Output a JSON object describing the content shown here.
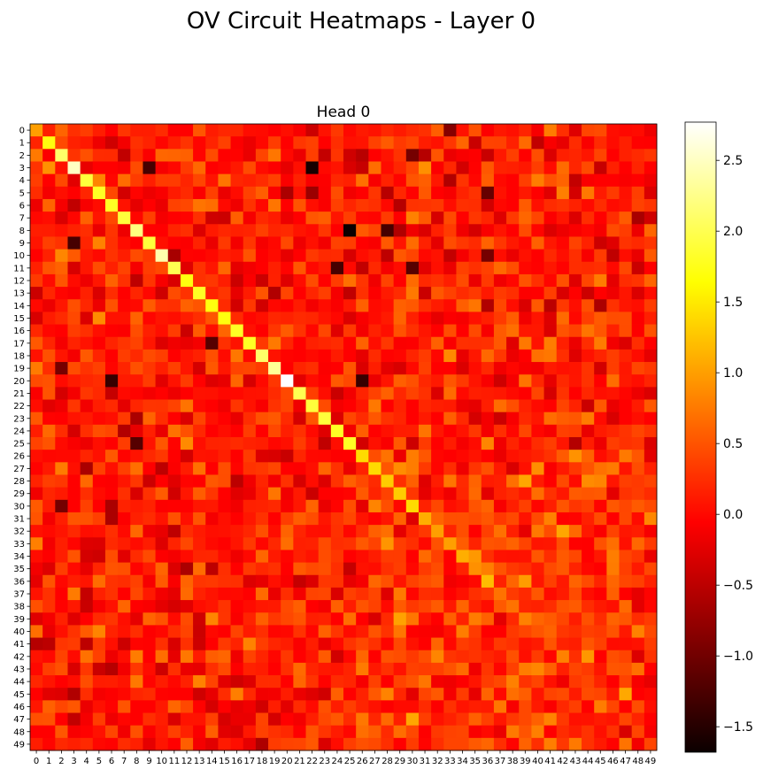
{
  "figure": {
    "suptitle": "OV Circuit Heatmaps - Layer 0"
  },
  "chart_data": {
    "type": "heatmap",
    "title": "Head 0",
    "xlabel": "",
    "ylabel": "",
    "colormap": "hot",
    "rows": 50,
    "cols": 50,
    "x_tick_labels": [
      "0",
      "1",
      "2",
      "3",
      "4",
      "5",
      "6",
      "7",
      "8",
      "9",
      "10",
      "11",
      "12",
      "13",
      "14",
      "15",
      "16",
      "17",
      "18",
      "19",
      "20",
      "21",
      "22",
      "23",
      "24",
      "25",
      "26",
      "27",
      "28",
      "29",
      "30",
      "31",
      "32",
      "33",
      "34",
      "35",
      "36",
      "37",
      "38",
      "39",
      "40",
      "41",
      "42",
      "43",
      "44",
      "45",
      "46",
      "47",
      "48",
      "49"
    ],
    "y_tick_labels": [
      "0",
      "1",
      "2",
      "3",
      "4",
      "5",
      "6",
      "7",
      "8",
      "9",
      "10",
      "11",
      "12",
      "13",
      "14",
      "15",
      "16",
      "17",
      "18",
      "19",
      "20",
      "21",
      "22",
      "23",
      "24",
      "25",
      "26",
      "27",
      "28",
      "29",
      "30",
      "31",
      "32",
      "33",
      "34",
      "35",
      "36",
      "37",
      "38",
      "39",
      "40",
      "41",
      "42",
      "43",
      "44",
      "45",
      "46",
      "47",
      "48",
      "49"
    ],
    "vmin": -1.68,
    "vmax": 2.77,
    "colorbar_ticks": [
      -1.5,
      -1.0,
      -0.5,
      0.0,
      0.5,
      1.0,
      1.5,
      2.0,
      2.5
    ],
    "colorbar_tick_labels": [
      "−1.5",
      "−1.0",
      "−0.5",
      "0.0",
      "0.5",
      "1.0",
      "1.5",
      "2.0",
      "2.5"
    ],
    "diagonal": [
      1.0,
      1.7,
      2.1,
      2.5,
      1.9,
      1.8,
      1.8,
      1.9,
      2.2,
      1.9,
      2.4,
      2.0,
      1.7,
      1.8,
      1.7,
      1.7,
      1.8,
      1.8,
      2.1,
      2.3,
      2.77,
      2.0,
      1.9,
      1.9,
      1.8,
      1.8,
      1.4,
      1.4,
      1.3,
      1.3,
      1.4,
      1.1,
      1.0,
      1.0,
      1.1,
      0.9,
      1.2,
      0.7,
      0.7,
      0.8,
      0.5,
      0.5,
      0.8,
      0.4,
      0.4,
      0.4,
      0.4,
      0.4,
      0.4,
      0.4
    ],
    "offdiag_mean": 0.1,
    "offdiag_spread": 0.3,
    "notable_cells": [
      {
        "row": 3,
        "col": 22,
        "value": -1.6
      },
      {
        "row": 8,
        "col": 25,
        "value": -1.68
      },
      {
        "row": 8,
        "col": 28,
        "value": -1.3
      },
      {
        "row": 3,
        "col": 9,
        "value": -1.3
      },
      {
        "row": 9,
        "col": 3,
        "value": -1.3
      },
      {
        "row": 20,
        "col": 6,
        "value": -1.4
      },
      {
        "row": 20,
        "col": 26,
        "value": -1.4
      },
      {
        "row": 11,
        "col": 24,
        "value": -1.3
      },
      {
        "row": 11,
        "col": 30,
        "value": -1.2
      },
      {
        "row": 25,
        "col": 8,
        "value": -1.2
      },
      {
        "row": 17,
        "col": 14,
        "value": -1.2
      },
      {
        "row": 30,
        "col": 2,
        "value": -1.0
      },
      {
        "row": 5,
        "col": 36,
        "value": -1.1
      },
      {
        "row": 10,
        "col": 36,
        "value": -1.0
      },
      {
        "row": 2,
        "col": 30,
        "value": -1.0
      },
      {
        "row": 0,
        "col": 33,
        "value": -0.9
      },
      {
        "row": 19,
        "col": 2,
        "value": -1.0
      },
      {
        "row": 3,
        "col": 31,
        "value": 0.9
      },
      {
        "row": 7,
        "col": 30,
        "value": 0.8
      }
    ]
  }
}
